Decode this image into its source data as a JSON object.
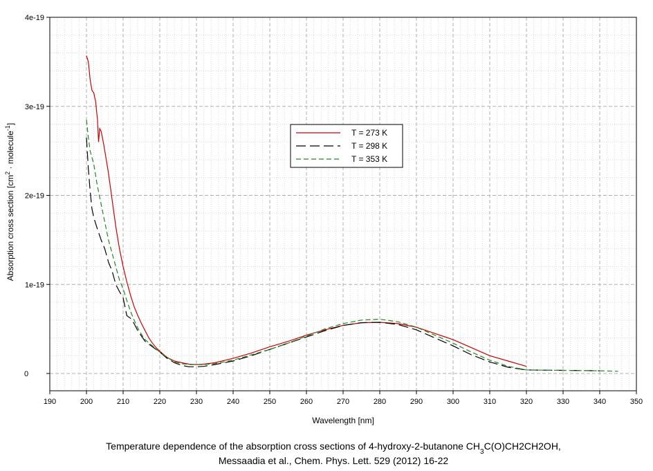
{
  "chart_data": {
    "type": "line",
    "xlabel": "Wavelength [nm]",
    "ylabel": {
      "main": "Absorption cross section [cm",
      "sup1": "2",
      "mid": " · molecule",
      "sup2": "-1",
      "end": "]"
    },
    "xlim": [
      190,
      350
    ],
    "ylim": [
      0,
      4e-19
    ],
    "xticks": [
      {
        "value": 190,
        "label": "190"
      },
      {
        "value": 200,
        "label": "200"
      },
      {
        "value": 210,
        "label": "210"
      },
      {
        "value": 220,
        "label": "220"
      },
      {
        "value": 230,
        "label": "230"
      },
      {
        "value": 240,
        "label": "240"
      },
      {
        "value": 250,
        "label": "250"
      },
      {
        "value": 260,
        "label": "260"
      },
      {
        "value": 270,
        "label": "270"
      },
      {
        "value": 280,
        "label": "280"
      },
      {
        "value": 290,
        "label": "290"
      },
      {
        "value": 300,
        "label": "300"
      },
      {
        "value": 310,
        "label": "310"
      },
      {
        "value": 320,
        "label": "320"
      },
      {
        "value": 330,
        "label": "330"
      },
      {
        "value": 340,
        "label": "340"
      },
      {
        "value": 350,
        "label": "350"
      }
    ],
    "yticks": [
      {
        "value": 0,
        "label": "0"
      },
      {
        "value": 1e-19,
        "label": "1e-19"
      },
      {
        "value": 2e-19,
        "label": "2e-19"
      },
      {
        "value": 3e-19,
        "label": "3e-19"
      },
      {
        "value": 4e-19,
        "label": "4e-19"
      }
    ],
    "grid": true,
    "legend_position": "center-top",
    "series": [
      {
        "name": "T = 273 K",
        "color": "#cc0000",
        "dash": "solid",
        "points": [
          [
            200,
            3.57e-19
          ],
          [
            200.5,
            3.5e-19
          ],
          [
            201,
            3.3e-19
          ],
          [
            201.5,
            3.18e-19
          ],
          [
            202,
            3.15e-19
          ],
          [
            202.5,
            3.05e-19
          ],
          [
            203,
            2.85e-19
          ],
          [
            203.3,
            2.6e-19
          ],
          [
            203.6,
            2.75e-19
          ],
          [
            204,
            2.72e-19
          ],
          [
            204.5,
            2.62e-19
          ],
          [
            205,
            2.5e-19
          ],
          [
            206,
            2.25e-19
          ],
          [
            207,
            1.95e-19
          ],
          [
            208,
            1.65e-19
          ],
          [
            209,
            1.4e-19
          ],
          [
            210,
            1.2e-19
          ],
          [
            211,
            1.03e-19
          ],
          [
            212,
            8.8e-20
          ],
          [
            213,
            7.5e-20
          ],
          [
            214,
            6.5e-20
          ],
          [
            215,
            5.6e-20
          ],
          [
            216,
            4.8e-20
          ],
          [
            217,
            4e-20
          ],
          [
            218,
            3.4e-20
          ],
          [
            219,
            2.9e-20
          ],
          [
            220,
            2.5e-20
          ],
          [
            222,
            1.8e-20
          ],
          [
            224,
            1.4e-20
          ],
          [
            226,
            1.2e-20
          ],
          [
            228,
            1.05e-20
          ],
          [
            230,
            1e-20
          ],
          [
            232,
            1.05e-20
          ],
          [
            235,
            1.2e-20
          ],
          [
            240,
            1.7e-20
          ],
          [
            245,
            2.3e-20
          ],
          [
            250,
            3e-20
          ],
          [
            255,
            3.6e-20
          ],
          [
            260,
            4.3e-20
          ],
          [
            265,
            4.9e-20
          ],
          [
            270,
            5.4e-20
          ],
          [
            275,
            5.7e-20
          ],
          [
            280,
            5.75e-20
          ],
          [
            285,
            5.6e-20
          ],
          [
            290,
            5.2e-20
          ],
          [
            295,
            4.5e-20
          ],
          [
            300,
            3.8e-20
          ],
          [
            305,
            2.9e-20
          ],
          [
            310,
            2e-20
          ],
          [
            315,
            1.4e-20
          ],
          [
            320,
            8e-21
          ]
        ]
      },
      {
        "name": "T = 298 K",
        "color": "#000000",
        "dash": "long-dash",
        "points": [
          [
            200,
            2.65e-19
          ],
          [
            200.5,
            2.3e-19
          ],
          [
            201,
            2.05e-19
          ],
          [
            201.5,
            1.85e-19
          ],
          [
            202,
            1.75e-19
          ],
          [
            203,
            1.62e-19
          ],
          [
            204,
            1.5e-19
          ],
          [
            205,
            1.4e-19
          ],
          [
            206,
            1.25e-19
          ],
          [
            207,
            1.15e-19
          ],
          [
            208,
            1e-19
          ],
          [
            209,
            9.2e-20
          ],
          [
            210,
            8.5e-20
          ],
          [
            211,
            6.5e-20
          ],
          [
            212,
            6.2e-20
          ],
          [
            213,
            5.6e-20
          ],
          [
            214,
            4.8e-20
          ],
          [
            215,
            4.2e-20
          ],
          [
            216,
            3.6e-20
          ],
          [
            218,
            3e-20
          ],
          [
            220,
            2.4e-20
          ],
          [
            222,
            1.7e-20
          ],
          [
            224,
            1.2e-20
          ],
          [
            226,
            9e-21
          ],
          [
            228,
            7.5e-21
          ],
          [
            230,
            7.5e-21
          ],
          [
            232,
            8e-21
          ],
          [
            235,
            1e-20
          ],
          [
            240,
            1.4e-20
          ],
          [
            245,
            2e-20
          ],
          [
            250,
            2.7e-20
          ],
          [
            255,
            3.4e-20
          ],
          [
            260,
            4.1e-20
          ],
          [
            265,
            4.8e-20
          ],
          [
            270,
            5.4e-20
          ],
          [
            275,
            5.7e-20
          ],
          [
            280,
            5.75e-20
          ],
          [
            285,
            5.5e-20
          ],
          [
            290,
            4.9e-20
          ],
          [
            295,
            4e-20
          ],
          [
            300,
            3.1e-20
          ],
          [
            305,
            2.1e-20
          ],
          [
            310,
            1.3e-20
          ],
          [
            315,
            7e-21
          ],
          [
            320,
            4e-21
          ],
          [
            330,
            3.5e-21
          ],
          [
            340,
            3e-21
          ]
        ]
      },
      {
        "name": "T = 353 K",
        "color": "#228822",
        "dash": "dash",
        "points": [
          [
            200,
            2.85e-19
          ],
          [
            200.5,
            2.65e-19
          ],
          [
            201,
            2.5e-19
          ],
          [
            202,
            2.35e-19
          ],
          [
            203,
            2.1e-19
          ],
          [
            204,
            1.9e-19
          ],
          [
            205,
            1.7e-19
          ],
          [
            206,
            1.5e-19
          ],
          [
            207,
            1.35e-19
          ],
          [
            208,
            1.2e-19
          ],
          [
            209,
            1.05e-19
          ],
          [
            210,
            9.5e-20
          ],
          [
            211,
            8.2e-20
          ],
          [
            212,
            7e-20
          ],
          [
            213,
            6e-20
          ],
          [
            214,
            5.1e-20
          ],
          [
            215,
            4.4e-20
          ],
          [
            216,
            3.8e-20
          ],
          [
            218,
            3.1e-20
          ],
          [
            220,
            2.4e-20
          ],
          [
            222,
            1.8e-20
          ],
          [
            224,
            1.3e-20
          ],
          [
            226,
            1.1e-20
          ],
          [
            228,
            1e-20
          ],
          [
            230,
            1e-20
          ],
          [
            232,
            1e-20
          ],
          [
            235,
            1.1e-20
          ],
          [
            240,
            1.5e-20
          ],
          [
            245,
            2.1e-20
          ],
          [
            250,
            2.7e-20
          ],
          [
            255,
            3.4e-20
          ],
          [
            260,
            4.2e-20
          ],
          [
            265,
            5e-20
          ],
          [
            270,
            5.6e-20
          ],
          [
            275,
            6e-20
          ],
          [
            280,
            6.1e-20
          ],
          [
            285,
            5.8e-20
          ],
          [
            290,
            5.2e-20
          ],
          [
            295,
            4.3e-20
          ],
          [
            300,
            3.4e-20
          ],
          [
            305,
            2.4e-20
          ],
          [
            310,
            1.5e-20
          ],
          [
            315,
            8e-21
          ],
          [
            320,
            4e-21
          ],
          [
            330,
            3.5e-21
          ],
          [
            340,
            3e-21
          ],
          [
            345,
            2.5e-21
          ]
        ]
      }
    ],
    "caption": {
      "line1_before": "Temperature dependence of the absorption cross sections of 4-hydroxy-2-butanone CH",
      "line1_sub": "3",
      "line1_after": "C(O)CH2CH2OH,",
      "line2": "Messaadia et al., Chem. Phys. Lett. 529 (2012) 16-22"
    }
  }
}
